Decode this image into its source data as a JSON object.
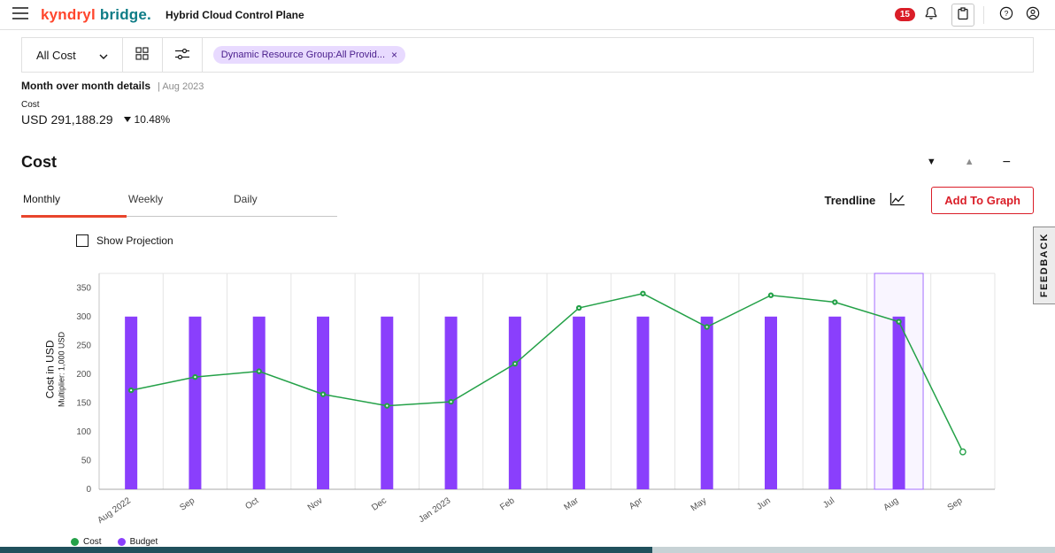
{
  "header": {
    "logo_primary": "kyndryl",
    "logo_secondary": "bridge.",
    "app_title": "Hybrid Cloud Control Plane",
    "notification_count": "15"
  },
  "toolbar": {
    "cost_dropdown_label": "All Cost",
    "filter_tag": "Dynamic Resource Group:All Provid...",
    "filter_tag_close": "×"
  },
  "summary": {
    "title": "Month over month details",
    "period": "| Aug 2023",
    "cost_label": "Cost",
    "cost_value": "USD 291,188.29",
    "delta": "10.48%"
  },
  "section": {
    "title": "Cost",
    "tabs": [
      {
        "label": "Monthly",
        "active": true
      },
      {
        "label": "Weekly",
        "active": false
      },
      {
        "label": "Daily",
        "active": false
      }
    ],
    "trendline_label": "Trendline",
    "add_to_graph_label": "Add To Graph",
    "show_projection_label": "Show Projection"
  },
  "legend": [
    {
      "label": "Cost",
      "color": "#24a148"
    },
    {
      "label": "Budget",
      "color": "#8a3ffc"
    }
  ],
  "feedback_label": "FEEDBACK",
  "colors": {
    "brand_red": "#ff462d",
    "brand_teal": "#0e7c86",
    "notification_red": "#da1e28",
    "tag_purple_bg": "#e8daff",
    "cost_green": "#24a148",
    "budget_purple": "#8a3ffc",
    "highlight_border": "#a56eff",
    "tab_underline": "#e8452c",
    "scroll_thumb": "#20505c"
  },
  "chart_data": {
    "type": "bar",
    "subtype": "combo bar+line",
    "categories": [
      "Aug 2022",
      "Sep",
      "Oct",
      "Nov",
      "Dec",
      "Jan 2023",
      "Feb",
      "Mar",
      "Apr",
      "May",
      "Jun",
      "Jul",
      "Aug",
      "Sep"
    ],
    "series": [
      {
        "name": "Cost",
        "type": "line",
        "color": "#24a148",
        "values": [
          172,
          195,
          205,
          165,
          145,
          152,
          218,
          315,
          340,
          282,
          337,
          325,
          291,
          65
        ],
        "last_point_projected": true
      },
      {
        "name": "Budget",
        "type": "bar",
        "color": "#8a3ffc",
        "values": [
          300,
          300,
          300,
          300,
          300,
          300,
          300,
          300,
          300,
          300,
          300,
          300,
          300,
          null
        ]
      }
    ],
    "title": "Cost",
    "xlabel": "",
    "ylabel": "Cost in USD",
    "ylabel_sub": "Multiplier: 1,000 USD",
    "ylim": [
      0,
      350
    ],
    "yticks": [
      0,
      50,
      100,
      150,
      200,
      250,
      300,
      350
    ],
    "grid": "vertical",
    "legend_position": "bottom-left",
    "highlighted_index": 12,
    "highlighted_category": "Aug"
  }
}
